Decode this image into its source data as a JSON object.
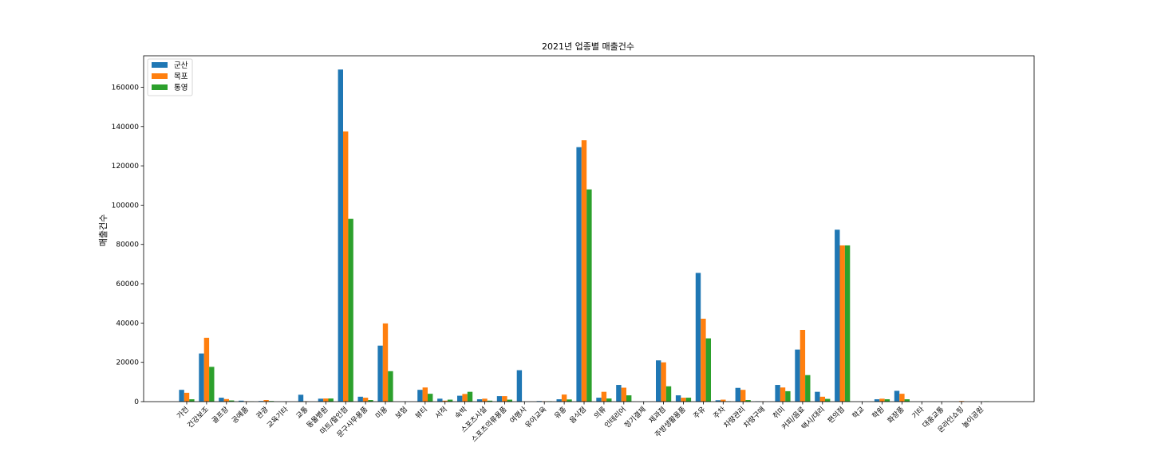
{
  "chart_data": {
    "type": "bar",
    "title": "2021년 업종별 매출건수",
    "xlabel": "",
    "ylabel": "매출건수",
    "ylim": [
      0,
      176000
    ],
    "yticks": [
      0,
      20000,
      40000,
      60000,
      80000,
      100000,
      120000,
      140000,
      160000
    ],
    "grid": false,
    "legend_position": "top-left",
    "categories": [
      "가전",
      "건강보조",
      "골프장",
      "공예품",
      "관광",
      "교육기타",
      "교통",
      "동물병원",
      "마트/할인점",
      "문구사무용품",
      "미용",
      "보험",
      "뷰티",
      "서적",
      "숙박",
      "스포츠시설",
      "스포츠의류용품",
      "여행사",
      "유아교육",
      "유흥",
      "음식점",
      "의류",
      "인테리어",
      "정기결제",
      "제과점",
      "주방생활용품",
      "주유",
      "주차",
      "차량관리",
      "차량구매",
      "취미",
      "커피/음료",
      "택시/대리",
      "편의점",
      "학교",
      "학원",
      "화장품",
      "기타",
      "대중교통",
      "온라인쇼핑",
      "놀이공원"
    ],
    "series": [
      {
        "name": "군산",
        "color": "#1f77b4",
        "values": [
          6000,
          24500,
          2000,
          500,
          300,
          0,
          3500,
          1500,
          169000,
          2500,
          28500,
          0,
          6000,
          1500,
          3000,
          1200,
          2800,
          16000,
          300,
          1200,
          129500,
          2000,
          8500,
          0,
          21000,
          3200,
          65500,
          700,
          7000,
          200,
          8500,
          26500,
          5000,
          87500,
          0,
          1200,
          5500,
          0,
          0,
          0,
          0
        ]
      },
      {
        "name": "목포",
        "color": "#ff7f0e",
        "values": [
          4500,
          32500,
          1300,
          200,
          800,
          0,
          200,
          1600,
          137500,
          2000,
          39800,
          0,
          7200,
          500,
          3900,
          1500,
          2800,
          0,
          200,
          3600,
          133000,
          5000,
          7100,
          0,
          20000,
          2000,
          42200,
          1000,
          6000,
          100,
          7200,
          36500,
          2500,
          79500,
          0,
          1500,
          4000,
          0,
          0,
          300,
          0
        ]
      },
      {
        "name": "통영",
        "color": "#2ca02c",
        "values": [
          1200,
          17700,
          600,
          100,
          300,
          0,
          0,
          1600,
          93000,
          800,
          15500,
          0,
          4000,
          1000,
          5000,
          500,
          1000,
          0,
          200,
          1100,
          108000,
          1600,
          3200,
          0,
          7800,
          2000,
          32200,
          200,
          800,
          0,
          5300,
          13500,
          1400,
          79500,
          0,
          1200,
          1200,
          0,
          0,
          0,
          200
        ]
      }
    ]
  }
}
